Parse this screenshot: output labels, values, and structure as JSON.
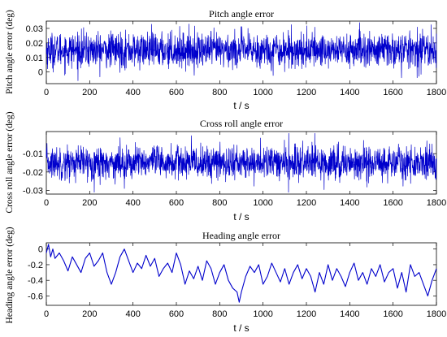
{
  "chart_data": [
    {
      "type": "line",
      "title": "Pitch angle error",
      "xlabel": "t / s",
      "ylabel": "Pitch angle error (deg)",
      "xlim": [
        0,
        1800
      ],
      "ylim": [
        -0.008,
        0.035
      ],
      "xticks": [
        0,
        200,
        400,
        600,
        800,
        1000,
        1200,
        1400,
        1600,
        1800
      ],
      "xtick_labels": [
        "0",
        "200",
        "400",
        "600",
        "800",
        "1000",
        "1200",
        "1400",
        "1600",
        "1800"
      ],
      "yticks": [
        0,
        0.01,
        0.02,
        0.03
      ],
      "ytick_labels": [
        "0",
        "0.01",
        "0.02",
        "0.03"
      ],
      "color": "#0000cc",
      "series": [
        {
          "style": "noise",
          "mean": 0.015,
          "std": 0.006,
          "range": [
            -0.006,
            0.034
          ],
          "points": 1800
        }
      ]
    },
    {
      "type": "line",
      "title": "Cross roll angle error",
      "xlabel": "t / s",
      "ylabel": "Cross roll angle error (deg)",
      "xlim": [
        0,
        1800
      ],
      "ylim": [
        -0.032,
        0.002
      ],
      "xticks": [
        0,
        200,
        400,
        600,
        800,
        1000,
        1200,
        1400,
        1600,
        1800
      ],
      "xtick_labels": [
        "0",
        "200",
        "400",
        "600",
        "800",
        "1000",
        "1200",
        "1400",
        "1600",
        "1800"
      ],
      "yticks": [
        -0.03,
        -0.02,
        -0.01
      ],
      "ytick_labels": [
        "-0.03",
        "-0.02",
        "-0.01"
      ],
      "color": "#0000cc",
      "series": [
        {
          "style": "noise",
          "mean": -0.015,
          "std": 0.0045,
          "range": [
            -0.031,
            0.001
          ],
          "points": 1800
        }
      ]
    },
    {
      "type": "line",
      "title": "Heading angle error",
      "xlabel": "t / s",
      "ylabel": "Heading angle error (deg)",
      "xlim": [
        0,
        1800
      ],
      "ylim": [
        -0.72,
        0.08
      ],
      "xticks": [
        0,
        200,
        400,
        600,
        800,
        1000,
        1200,
        1400,
        1600,
        1800
      ],
      "xtick_labels": [
        "0",
        "200",
        "400",
        "600",
        "800",
        "1000",
        "1200",
        "1400",
        "1600",
        "1800"
      ],
      "yticks": [
        -0.6,
        -0.4,
        -0.2,
        0
      ],
      "ytick_labels": [
        "-0.6",
        "-0.4",
        "-0.2",
        "0"
      ],
      "color": "#0000cc",
      "series": [
        {
          "style": "smooth",
          "x": [
            0,
            10,
            20,
            30,
            40,
            60,
            80,
            100,
            120,
            140,
            160,
            180,
            200,
            220,
            240,
            260,
            280,
            300,
            320,
            340,
            360,
            380,
            400,
            420,
            440,
            460,
            480,
            500,
            520,
            540,
            560,
            580,
            600,
            620,
            640,
            660,
            680,
            700,
            720,
            740,
            760,
            780,
            800,
            820,
            840,
            860,
            880,
            890,
            900,
            920,
            940,
            960,
            980,
            1000,
            1020,
            1040,
            1060,
            1080,
            1100,
            1120,
            1140,
            1160,
            1180,
            1200,
            1220,
            1240,
            1260,
            1280,
            1300,
            1320,
            1340,
            1360,
            1380,
            1400,
            1420,
            1440,
            1460,
            1480,
            1500,
            1520,
            1540,
            1560,
            1580,
            1600,
            1620,
            1640,
            1660,
            1680,
            1700,
            1720,
            1740,
            1760,
            1780,
            1800
          ],
          "y": [
            -0.05,
            0.06,
            -0.1,
            0.0,
            -0.12,
            -0.05,
            -0.15,
            -0.28,
            -0.1,
            -0.2,
            -0.3,
            -0.12,
            -0.05,
            -0.22,
            -0.15,
            -0.05,
            -0.3,
            -0.45,
            -0.3,
            -0.1,
            -0.0,
            -0.15,
            -0.3,
            -0.18,
            -0.25,
            -0.08,
            -0.22,
            -0.12,
            -0.35,
            -0.25,
            -0.18,
            -0.3,
            -0.05,
            -0.2,
            -0.45,
            -0.28,
            -0.38,
            -0.22,
            -0.4,
            -0.15,
            -0.25,
            -0.45,
            -0.3,
            -0.2,
            -0.4,
            -0.5,
            -0.55,
            -0.68,
            -0.55,
            -0.35,
            -0.22,
            -0.3,
            -0.2,
            -0.45,
            -0.35,
            -0.18,
            -0.3,
            -0.42,
            -0.25,
            -0.45,
            -0.3,
            -0.2,
            -0.38,
            -0.25,
            -0.35,
            -0.55,
            -0.3,
            -0.45,
            -0.2,
            -0.4,
            -0.25,
            -0.35,
            -0.48,
            -0.3,
            -0.18,
            -0.4,
            -0.3,
            -0.45,
            -0.25,
            -0.35,
            -0.2,
            -0.42,
            -0.3,
            -0.25,
            -0.5,
            -0.3,
            -0.55,
            -0.2,
            -0.35,
            -0.3,
            -0.45,
            -0.6,
            -0.4,
            -0.25
          ]
        }
      ]
    }
  ]
}
